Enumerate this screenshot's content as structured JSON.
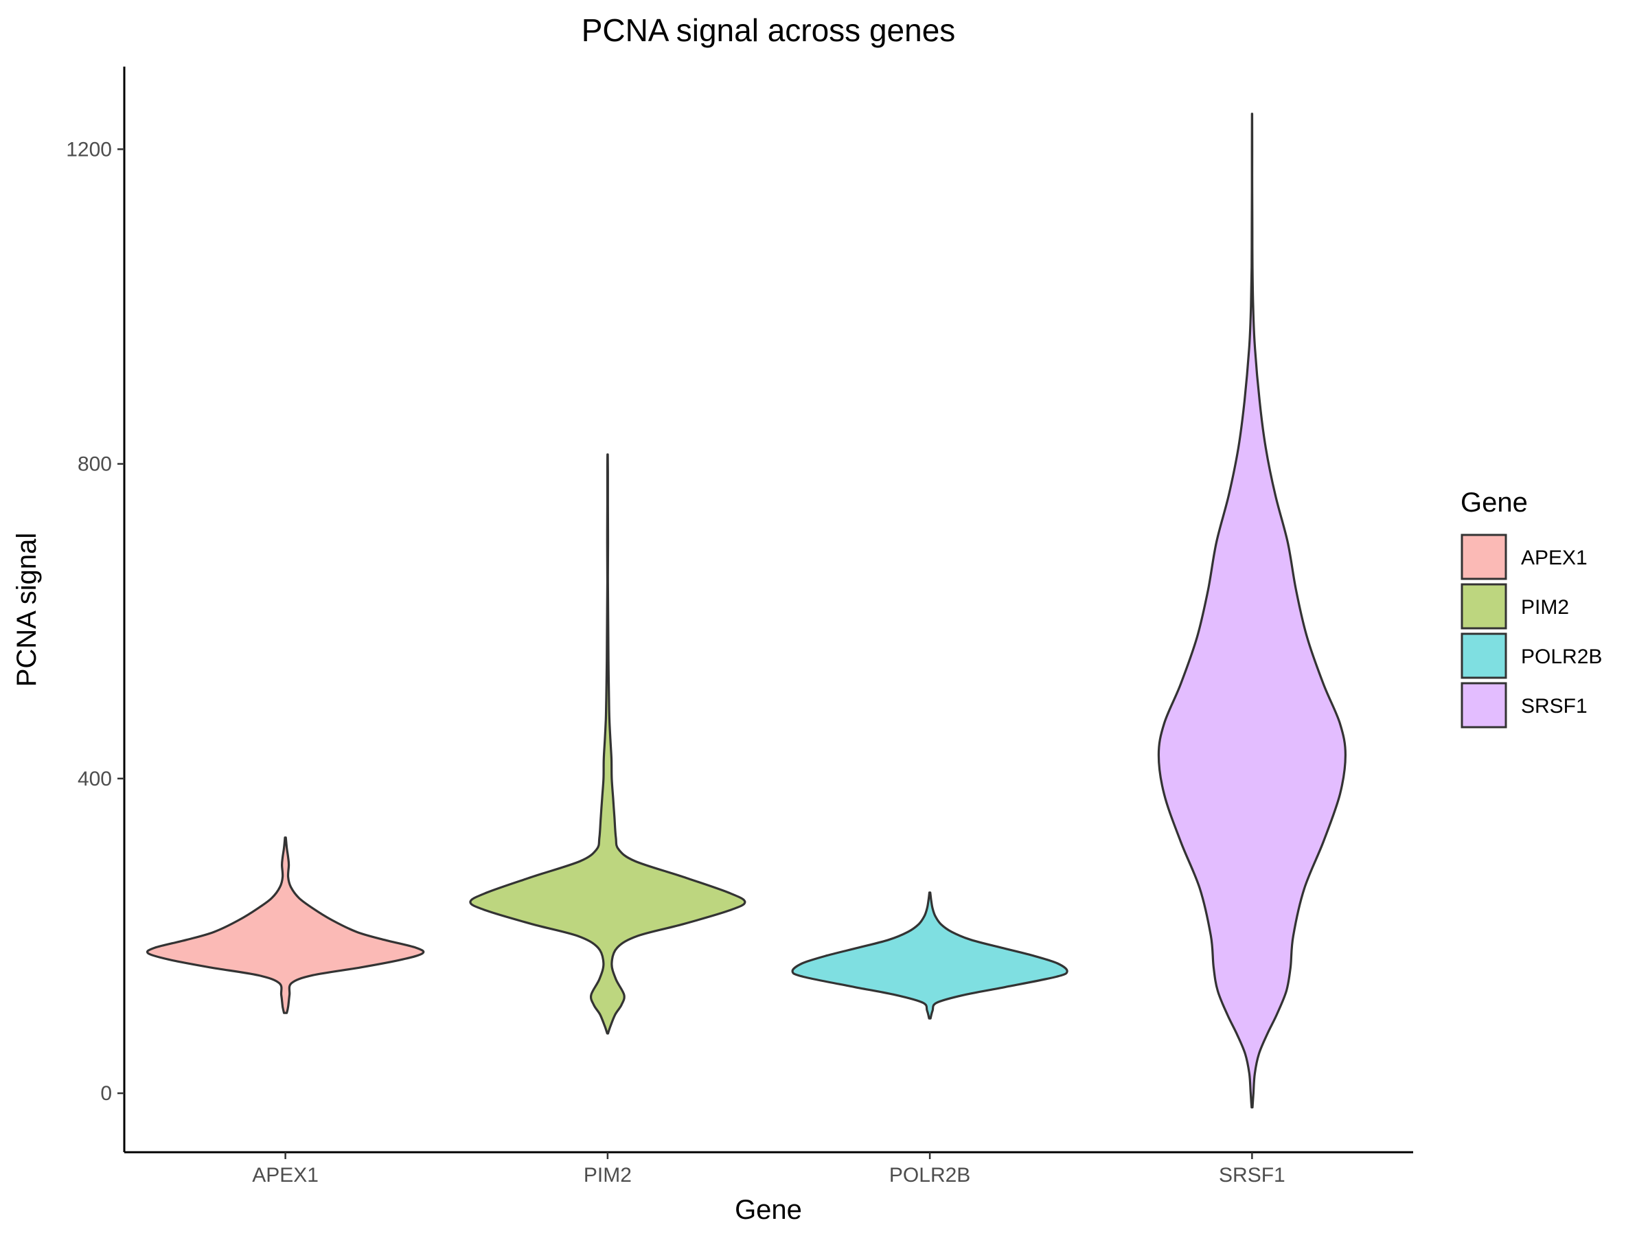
{
  "chart_data": {
    "type": "violin",
    "title": "PCNA signal across genes",
    "xlabel": "Gene",
    "ylabel": "PCNA signal",
    "categories": [
      "APEX1",
      "PIM2",
      "POLR2B",
      "SRSF1"
    ],
    "ylim": [
      -75,
      1305
    ],
    "yticks": [
      0,
      400,
      800,
      1200
    ],
    "grid": false,
    "legend": {
      "title": "Gene",
      "placement": "right"
    },
    "series": [
      {
        "name": "APEX1",
        "fill": "#F8766D",
        "range": [
          102,
          325
        ],
        "density": [
          [
            102,
            0.01
          ],
          [
            110,
            0.02
          ],
          [
            125,
            0.03
          ],
          [
            140,
            0.045
          ],
          [
            150,
            0.2
          ],
          [
            160,
            0.55
          ],
          [
            170,
            0.85
          ],
          [
            178,
            1.0
          ],
          [
            185,
            0.95
          ],
          [
            195,
            0.72
          ],
          [
            205,
            0.52
          ],
          [
            220,
            0.34
          ],
          [
            235,
            0.2
          ],
          [
            248,
            0.1
          ],
          [
            262,
            0.04
          ],
          [
            275,
            0.02
          ],
          [
            290,
            0.025
          ],
          [
            300,
            0.02
          ],
          [
            312,
            0.01
          ],
          [
            325,
            0.003
          ]
        ]
      },
      {
        "name": "PIM2",
        "fill": "#7CAE00",
        "range": [
          76,
          812
        ],
        "density": [
          [
            76,
            0.003
          ],
          [
            85,
            0.02
          ],
          [
            100,
            0.055
          ],
          [
            112,
            0.1
          ],
          [
            125,
            0.12
          ],
          [
            145,
            0.06
          ],
          [
            165,
            0.03
          ],
          [
            185,
            0.07
          ],
          [
            200,
            0.22
          ],
          [
            215,
            0.55
          ],
          [
            232,
            0.88
          ],
          [
            243,
            1.0
          ],
          [
            255,
            0.88
          ],
          [
            275,
            0.55
          ],
          [
            295,
            0.2
          ],
          [
            310,
            0.08
          ],
          [
            325,
            0.06
          ],
          [
            350,
            0.05
          ],
          [
            375,
            0.04
          ],
          [
            400,
            0.03
          ],
          [
            425,
            0.028
          ],
          [
            450,
            0.02
          ],
          [
            475,
            0.013
          ],
          [
            500,
            0.01
          ],
          [
            550,
            0.006
          ],
          [
            600,
            0.004
          ],
          [
            650,
            0.002
          ],
          [
            700,
            0.003
          ],
          [
            750,
            0.002
          ],
          [
            790,
            0.002
          ],
          [
            812,
            0.001
          ]
        ]
      },
      {
        "name": "POLR2B",
        "fill": "#00BFC4",
        "range": [
          95,
          255
        ],
        "density": [
          [
            95,
            0.005
          ],
          [
            105,
            0.02
          ],
          [
            115,
            0.05
          ],
          [
            125,
            0.25
          ],
          [
            135,
            0.55
          ],
          [
            148,
            0.92
          ],
          [
            155,
            1.0
          ],
          [
            165,
            0.93
          ],
          [
            175,
            0.75
          ],
          [
            185,
            0.52
          ],
          [
            195,
            0.3
          ],
          [
            205,
            0.16
          ],
          [
            215,
            0.08
          ],
          [
            225,
            0.04
          ],
          [
            235,
            0.02
          ],
          [
            245,
            0.01
          ],
          [
            255,
            0.003
          ]
        ]
      },
      {
        "name": "SRSF1",
        "fill": "#C77CFF",
        "range": [
          -18,
          1245
        ],
        "density": [
          [
            -18,
            0.003
          ],
          [
            0,
            0.01
          ],
          [
            25,
            0.02
          ],
          [
            50,
            0.05
          ],
          [
            75,
            0.11
          ],
          [
            100,
            0.18
          ],
          [
            130,
            0.25
          ],
          [
            160,
            0.28
          ],
          [
            200,
            0.3
          ],
          [
            260,
            0.38
          ],
          [
            320,
            0.52
          ],
          [
            380,
            0.64
          ],
          [
            430,
            0.68
          ],
          [
            470,
            0.64
          ],
          [
            520,
            0.52
          ],
          [
            580,
            0.4
          ],
          [
            640,
            0.32
          ],
          [
            700,
            0.26
          ],
          [
            760,
            0.17
          ],
          [
            820,
            0.1
          ],
          [
            880,
            0.055
          ],
          [
            950,
            0.02
          ],
          [
            1000,
            0.008
          ],
          [
            1050,
            0.003
          ],
          [
            1100,
            0.002
          ],
          [
            1150,
            0.001
          ],
          [
            1200,
            0.001
          ],
          [
            1245,
            0.0005
          ]
        ]
      }
    ]
  }
}
